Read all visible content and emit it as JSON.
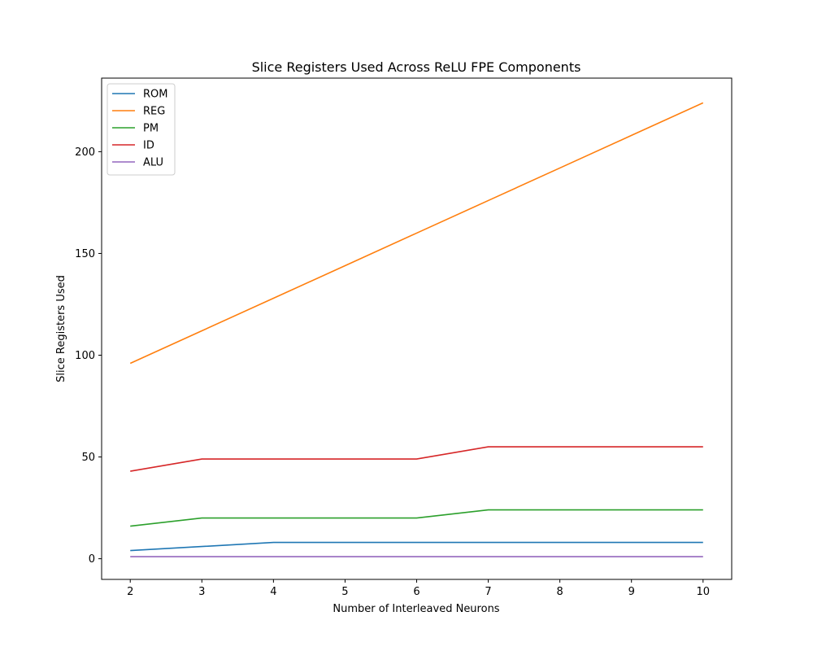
{
  "chart_data": {
    "type": "line",
    "title": "Slice Registers Used Across ReLU FPE Components",
    "xlabel": "Number of Interleaved Neurons",
    "ylabel": "Slice Registers Used",
    "x": [
      2,
      3,
      4,
      5,
      6,
      7,
      8,
      9,
      10
    ],
    "xlim": [
      1.6,
      10.4
    ],
    "ylim": [
      -10.15,
      236.15
    ],
    "xticks": [
      2,
      3,
      4,
      5,
      6,
      7,
      8,
      9,
      10
    ],
    "yticks": [
      0,
      50,
      100,
      150,
      200
    ],
    "grid": false,
    "legend_position": "top-left",
    "series": [
      {
        "name": "ROM",
        "color": "#1f77b4",
        "values": [
          4,
          6,
          8,
          8,
          8,
          8,
          8,
          8,
          8
        ]
      },
      {
        "name": "REG",
        "color": "#ff7f0e",
        "values": [
          96,
          112,
          128,
          144,
          160,
          176,
          192,
          208,
          224
        ]
      },
      {
        "name": "PM",
        "color": "#2ca02c",
        "values": [
          16,
          20,
          20,
          20,
          20,
          24,
          24,
          24,
          24
        ]
      },
      {
        "name": "ID",
        "color": "#d62728",
        "values": [
          43,
          49,
          49,
          49,
          49,
          55,
          55,
          55,
          55
        ]
      },
      {
        "name": "ALU",
        "color": "#9467bd",
        "values": [
          1,
          1,
          1,
          1,
          1,
          1,
          1,
          1,
          1
        ]
      }
    ]
  }
}
